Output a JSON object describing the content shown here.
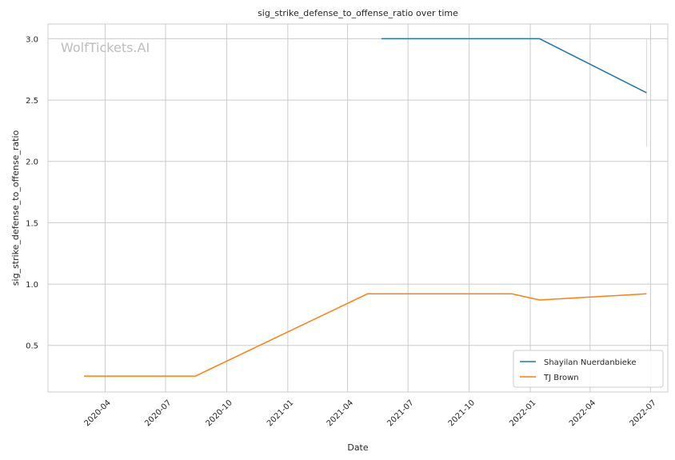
{
  "chart_data": {
    "type": "line",
    "title": "sig_strike_defense_to_offense_ratio over time",
    "xlabel": "Date",
    "ylabel": "sig_strike_defense_to_offense_ratio",
    "watermark": "WolfTickets.AI",
    "xlim": [
      "2020-01-06",
      "2022-07-27"
    ],
    "ylim": [
      0.12,
      3.12
    ],
    "x_ticks": [
      "2020-04-01",
      "2020-07-01",
      "2020-10-01",
      "2021-01-01",
      "2021-04-01",
      "2021-07-01",
      "2021-10-01",
      "2022-01-01",
      "2022-04-01",
      "2022-07-01"
    ],
    "x_tick_labels": [
      "2020-04",
      "2020-07",
      "2020-10",
      "2021-01",
      "2021-04",
      "2021-07",
      "2021-10",
      "2022-01",
      "2022-04",
      "2022-07"
    ],
    "y_ticks": [
      0.5,
      1.0,
      1.5,
      2.0,
      2.5,
      3.0
    ],
    "y_tick_labels": [
      "0.5",
      "1.0",
      "1.5",
      "2.0",
      "2.5",
      "3.0"
    ],
    "grid": true,
    "legend_position": "bottom-right",
    "series": [
      {
        "name": "Shayilan Nuerdanbieke",
        "color": "#1f77b4",
        "x": [
          "2021-05-22",
          "2022-01-15",
          "2022-06-25"
        ],
        "y": [
          3.0,
          3.0,
          2.56
        ]
      },
      {
        "name": "TJ Brown",
        "color": "#ff7f0e",
        "x": [
          "2020-02-29",
          "2020-08-15",
          "2021-05-01",
          "2021-12-04",
          "2022-01-15",
          "2022-06-25"
        ],
        "y": [
          0.25,
          0.25,
          0.92,
          0.92,
          0.87,
          0.92
        ]
      }
    ],
    "annotations": [
      {
        "type": "vertical-segment",
        "x": "2022-06-25",
        "y_from": 2.12,
        "y_to": 3.0,
        "color": "#d9d9d9"
      }
    ]
  }
}
